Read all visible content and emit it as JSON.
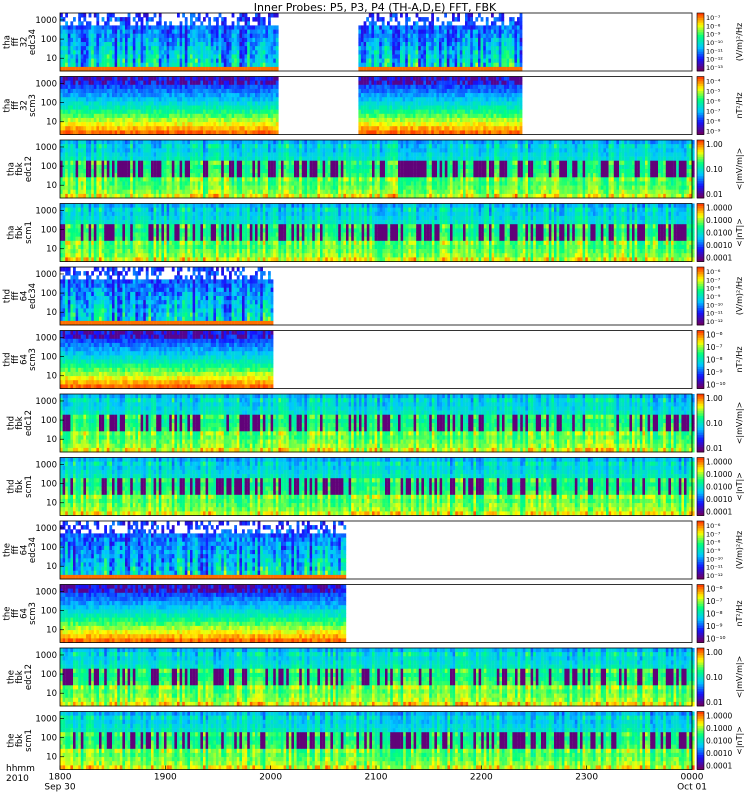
{
  "title": "Inner Probes: P5, P3, P4 (TH-A,D,E) FFT, FBK",
  "x_axis": {
    "row_label_1": "hhmm",
    "row_label_2": "2010",
    "ticks": [
      {
        "label": "1800",
        "sub": "Sep 30",
        "t": 0
      },
      {
        "label": "1900",
        "sub": "",
        "t": 60
      },
      {
        "label": "2000",
        "sub": "",
        "t": 120
      },
      {
        "label": "2100",
        "sub": "",
        "t": 180
      },
      {
        "label": "2200",
        "sub": "",
        "t": 240
      },
      {
        "label": "2300",
        "sub": "",
        "t": 300
      },
      {
        "label": "0000",
        "sub": "Oct 01",
        "t": 360
      }
    ],
    "range_minutes": [
      0,
      360
    ]
  },
  "panels": [
    {
      "id": "tha-fff32-edc34",
      "name_lines": [
        "tha",
        "fff",
        "32",
        "edc34"
      ],
      "kind": "fft-e",
      "yticks": [
        "1000",
        "100",
        "10"
      ],
      "cbar_labels": [
        "10⁻⁷",
        "10⁻⁸",
        "10⁻⁹",
        "10⁻¹⁰",
        "10⁻¹¹",
        "10⁻¹²",
        "10⁻¹³"
      ],
      "cbar_unit": "(V/m)²/Hz",
      "data_intervals": [
        [
          0,
          124
        ],
        [
          170,
          263
        ]
      ]
    },
    {
      "id": "tha-fff32-scm3",
      "name_lines": [
        "tha",
        "fff",
        "32",
        "scm3"
      ],
      "kind": "fft-b",
      "yticks": [
        "1000",
        "100",
        "10"
      ],
      "cbar_labels": [
        "10⁻⁴",
        "10⁻⁵",
        "10⁻⁶",
        "10⁻⁷",
        "10⁻⁸",
        "10⁻⁹"
      ],
      "cbar_unit": "nT²/Hz",
      "data_intervals": [
        [
          0,
          124
        ],
        [
          170,
          263
        ]
      ]
    },
    {
      "id": "tha-fbk-edc12",
      "name_lines": [
        "tha",
        "fbk",
        "edc12"
      ],
      "kind": "fbk",
      "yticks": [
        "1000",
        "100",
        "10"
      ],
      "cbar_labels": [
        "1.00",
        "0.10",
        "0.01"
      ],
      "cbar_unit": "<|mV/m|>",
      "data_intervals": [
        [
          0,
          360
        ]
      ]
    },
    {
      "id": "tha-fbk-scm1",
      "name_lines": [
        "tha",
        "fbk",
        "scm1"
      ],
      "kind": "fbk",
      "yticks": [
        "1000",
        "100",
        "10"
      ],
      "cbar_labels": [
        "1.0000",
        "0.1000",
        "0.0100",
        "0.0010",
        "0.0001"
      ],
      "cbar_unit": "<|nT|>",
      "data_intervals": [
        [
          0,
          360
        ]
      ]
    },
    {
      "id": "thd-fff64-edc34",
      "name_lines": [
        "thd",
        "fff",
        "64",
        "edc34"
      ],
      "kind": "fft-e",
      "yticks": [
        "1000",
        "100",
        "10"
      ],
      "cbar_labels": [
        "10⁻⁶",
        "10⁻⁷",
        "10⁻⁸",
        "10⁻⁹",
        "10⁻¹⁰",
        "10⁻¹¹",
        "10⁻¹²"
      ],
      "cbar_unit": "(V/m)²/Hz",
      "data_intervals": [
        [
          0,
          120
        ]
      ]
    },
    {
      "id": "thd-fff64-scm3",
      "name_lines": [
        "thd",
        "fff",
        "64",
        "scm3"
      ],
      "kind": "fft-b",
      "yticks": [
        "1000",
        "100",
        "10"
      ],
      "cbar_labels": [
        "10⁻⁶",
        "10⁻⁷",
        "10⁻⁸",
        "10⁻⁹",
        "10⁻¹⁰"
      ],
      "cbar_unit": "nT²/Hz",
      "data_intervals": [
        [
          0,
          120
        ]
      ]
    },
    {
      "id": "thd-fbk-edc12",
      "name_lines": [
        "thd",
        "fbk",
        "edc12"
      ],
      "kind": "fbk",
      "yticks": [
        "1000",
        "100",
        "10"
      ],
      "cbar_labels": [
        "1.00",
        "0.10",
        "0.01"
      ],
      "cbar_unit": "<|mV/m|>",
      "data_intervals": [
        [
          0,
          360
        ]
      ]
    },
    {
      "id": "thd-fbk-scm1",
      "name_lines": [
        "thd",
        "fbk",
        "scm1"
      ],
      "kind": "fbk",
      "yticks": [
        "1000",
        "100",
        "10"
      ],
      "cbar_labels": [
        "1.0000",
        "0.1000",
        "0.0100",
        "0.0010",
        "0.0001"
      ],
      "cbar_unit": "<|nT|>",
      "data_intervals": [
        [
          0,
          360
        ]
      ]
    },
    {
      "id": "the-fff64-edc34",
      "name_lines": [
        "the",
        "fff",
        "64",
        "edc34"
      ],
      "kind": "fft-e",
      "yticks": [
        "1000",
        "100",
        "10"
      ],
      "cbar_labels": [
        "10⁻⁶",
        "10⁻⁷",
        "10⁻⁸",
        "10⁻⁹",
        "10⁻¹⁰",
        "10⁻¹¹",
        "10⁻¹²"
      ],
      "cbar_unit": "(V/m)²/Hz",
      "data_intervals": [
        [
          0,
          162
        ]
      ]
    },
    {
      "id": "the-fff64-scm3",
      "name_lines": [
        "the",
        "fff",
        "64",
        "scm3"
      ],
      "kind": "fft-b",
      "yticks": [
        "1000",
        "100",
        "10"
      ],
      "cbar_labels": [
        "10⁻⁶",
        "10⁻⁷",
        "10⁻⁸",
        "10⁻⁹",
        "10⁻¹⁰"
      ],
      "cbar_unit": "nT²/Hz",
      "data_intervals": [
        [
          0,
          162
        ]
      ]
    },
    {
      "id": "the-fbk-edc12",
      "name_lines": [
        "the",
        "fbk",
        "edc12"
      ],
      "kind": "fbk",
      "yticks": [
        "1000",
        "100",
        "10"
      ],
      "cbar_labels": [
        "1.00",
        "0.10",
        "0.01"
      ],
      "cbar_unit": "<|mV/m|>",
      "data_intervals": [
        [
          0,
          360
        ]
      ]
    },
    {
      "id": "the-fbk-scm1",
      "name_lines": [
        "the",
        "fbk",
        "scm1"
      ],
      "kind": "fbk",
      "yticks": [
        "1000",
        "100",
        "10"
      ],
      "cbar_labels": [
        "1.0000",
        "0.1000",
        "0.0100",
        "0.0010",
        "0.0001"
      ],
      "cbar_unit": "<|nT|>",
      "data_intervals": [
        [
          0,
          360
        ]
      ]
    }
  ],
  "chart_data": {
    "type": "heatmap",
    "title": "Inner Probes: P5, P3, P4 (TH-A,D,E) FFT, FBK",
    "x_range_hhmm": [
      "1800",
      "0000"
    ],
    "y_scale": "log",
    "colormap": [
      "#6a006a",
      "#1414ff",
      "#00c8ff",
      "#00ff80",
      "#ffff00",
      "#ff4000"
    ],
    "panels": [
      {
        "name": "tha fff 32 edc34",
        "data_hhmm": [
          [
            "1800",
            "2004"
          ],
          [
            "2050",
            "2223"
          ]
        ]
      },
      {
        "name": "tha fff 32 scm3",
        "data_hhmm": [
          [
            "1800",
            "2004"
          ],
          [
            "2050",
            "2223"
          ]
        ]
      },
      {
        "name": "tha fbk edc12",
        "data_hhmm": [
          [
            "1800",
            "0000"
          ]
        ]
      },
      {
        "name": "tha fbk scm1",
        "data_hhmm": [
          [
            "1800",
            "0000"
          ]
        ]
      },
      {
        "name": "thd fff 64 edc34",
        "data_hhmm": [
          [
            "1800",
            "2000"
          ]
        ]
      },
      {
        "name": "thd fff 64 scm3",
        "data_hhmm": [
          [
            "1800",
            "2000"
          ]
        ]
      },
      {
        "name": "thd fbk edc12",
        "data_hhmm": [
          [
            "1800",
            "0000"
          ]
        ]
      },
      {
        "name": "thd fbk scm1",
        "data_hhmm": [
          [
            "1800",
            "0000"
          ]
        ]
      },
      {
        "name": "the fff 64 edc34",
        "data_hhmm": [
          [
            "1800",
            "2042"
          ]
        ]
      },
      {
        "name": "the fff 64 scm3",
        "data_hhmm": [
          [
            "1800",
            "2042"
          ]
        ]
      },
      {
        "name": "the fbk edc12",
        "data_hhmm": [
          [
            "1800",
            "0000"
          ]
        ]
      },
      {
        "name": "the fbk scm1",
        "data_hhmm": [
          [
            "1800",
            "0000"
          ]
        ]
      }
    ]
  }
}
